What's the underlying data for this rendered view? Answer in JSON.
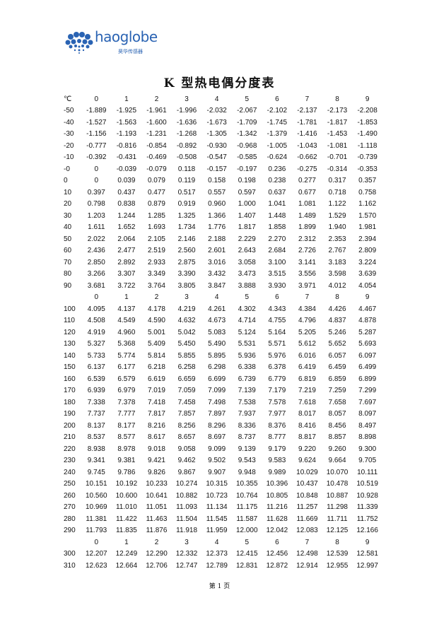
{
  "logo": {
    "brand": "haoglobe",
    "subtitle": "昊华传感器",
    "color": "#2a63b3"
  },
  "title": "K 型热电偶分度表",
  "footer": "第 1 页",
  "sections": [
    {
      "header": {
        "label": "℃",
        "cols": [
          "0",
          "1",
          "2",
          "3",
          "4",
          "5",
          "6",
          "7",
          "8",
          "9"
        ]
      },
      "rows": [
        {
          "t": "-50",
          "v": [
            "-1.889",
            "-1.925",
            "-1.961",
            "-1.996",
            "-2.032",
            "-2.067",
            "-2.102",
            "-2.137",
            "-2.173",
            "-2.208"
          ]
        },
        {
          "t": "-40",
          "v": [
            "-1.527",
            "-1.563",
            "-1.600",
            "-1.636",
            "-1.673",
            "-1.709",
            "-1.745",
            "-1.781",
            "-1.817",
            "-1.853"
          ]
        },
        {
          "t": "-30",
          "v": [
            "-1.156",
            "-1.193",
            "-1.231",
            "-1.268",
            "-1.305",
            "-1.342",
            "-1.379",
            "-1.416",
            "-1.453",
            "-1.490"
          ]
        },
        {
          "t": "-20",
          "v": [
            "-0.777",
            "-0.816",
            "-0.854",
            "-0.892",
            "-0.930",
            "-0.968",
            "-1.005",
            "-1.043",
            "-1.081",
            "-1.118"
          ]
        },
        {
          "t": "-10",
          "v": [
            "-0.392",
            "-0.431",
            "-0.469",
            "-0.508",
            "-0.547",
            "-0.585",
            "-0.624",
            "-0.662",
            "-0.701",
            "-0.739"
          ]
        },
        {
          "t": "-0",
          "v": [
            "0",
            "-0.039",
            "-0.079",
            "0.118",
            "-0.157",
            "-0.197",
            "0.236",
            "-0.275",
            "-0.314",
            "-0.353"
          ]
        },
        {
          "t": "0",
          "v": [
            "0",
            "0.039",
            "0.079",
            "0.119",
            "0.158",
            "0.198",
            "0.238",
            "0.277",
            "0.317",
            "0.357"
          ]
        },
        {
          "t": "10",
          "v": [
            "0.397",
            "0.437",
            "0.477",
            "0.517",
            "0.557",
            "0.597",
            "0.637",
            "0.677",
            "0.718",
            "0.758"
          ]
        },
        {
          "t": "20",
          "v": [
            "0.798",
            "0.838",
            "0.879",
            "0.919",
            "0.960",
            "1.000",
            "1.041",
            "1.081",
            "1.122",
            "1.162"
          ]
        },
        {
          "t": "30",
          "v": [
            "1.203",
            "1.244",
            "1.285",
            "1.325",
            "1.366",
            "1.407",
            "1.448",
            "1.489",
            "1.529",
            "1.570"
          ]
        },
        {
          "t": "40",
          "v": [
            "1.611",
            "1.652",
            "1.693",
            "1.734",
            "1.776",
            "1.817",
            "1.858",
            "1.899",
            "1.940",
            "1.981"
          ]
        },
        {
          "t": "50",
          "v": [
            "2.022",
            "2.064",
            "2.105",
            "2.146",
            "2.188",
            "2.229",
            "2.270",
            "2.312",
            "2.353",
            "2.394"
          ]
        },
        {
          "t": "60",
          "v": [
            "2.436",
            "2.477",
            "2.519",
            "2.560",
            "2.601",
            "2.643",
            "2.684",
            "2.726",
            "2.767",
            "2.809"
          ]
        },
        {
          "t": "70",
          "v": [
            "2.850",
            "2.892",
            "2.933",
            "2.875",
            "3.016",
            "3.058",
            "3.100",
            "3.141",
            "3.183",
            "3.224"
          ]
        },
        {
          "t": "80",
          "v": [
            "3.266",
            "3.307",
            "3.349",
            "3.390",
            "3.432",
            "3.473",
            "3.515",
            "3.556",
            "3.598",
            "3.639"
          ]
        },
        {
          "t": "90",
          "v": [
            "3.681",
            "3.722",
            "3.764",
            "3.805",
            "3.847",
            "3.888",
            "3.930",
            "3.971",
            "4.012",
            "4.054"
          ]
        }
      ]
    },
    {
      "header": {
        "label": "",
        "cols": [
          "0",
          "1",
          "2",
          "3",
          "4",
          "5",
          "6",
          "7",
          "8",
          "9"
        ]
      },
      "rows": [
        {
          "t": "100",
          "v": [
            "4.095",
            "4.137",
            "4.178",
            "4.219",
            "4.261",
            "4.302",
            "4.343",
            "4.384",
            "4.426",
            "4.467"
          ]
        },
        {
          "t": "110",
          "v": [
            "4.508",
            "4.549",
            "4.590",
            "4.632",
            "4.673",
            "4.714",
            "4.755",
            "4.796",
            "4.837",
            "4.878"
          ]
        },
        {
          "t": "120",
          "v": [
            "4.919",
            "4.960",
            "5.001",
            "5.042",
            "5.083",
            "5.124",
            "5.164",
            "5.205",
            "5.246",
            "5.287"
          ]
        },
        {
          "t": "130",
          "v": [
            "5.327",
            "5.368",
            "5.409",
            "5.450",
            "5.490",
            "5.531",
            "5.571",
            "5.612",
            "5.652",
            "5.693"
          ]
        },
        {
          "t": "140",
          "v": [
            "5.733",
            "5.774",
            "5.814",
            "5.855",
            "5.895",
            "5.936",
            "5.976",
            "6.016",
            "6.057",
            "6.097"
          ]
        },
        {
          "t": "150",
          "v": [
            "6.137",
            "6.177",
            "6.218",
            "6.258",
            "6.298",
            "6.338",
            "6.378",
            "6.419",
            "6.459",
            "6.499"
          ]
        },
        {
          "t": "160",
          "v": [
            "6.539",
            "6.579",
            "6.619",
            "6.659",
            "6.699",
            "6.739",
            "6.779",
            "6.819",
            "6.859",
            "6.899"
          ]
        },
        {
          "t": "170",
          "v": [
            "6.939",
            "6.979",
            "7.019",
            "7.059",
            "7.099",
            "7.139",
            "7.179",
            "7.219",
            "7.259",
            "7.299"
          ]
        },
        {
          "t": "180",
          "v": [
            "7.338",
            "7.378",
            "7.418",
            "7.458",
            "7.498",
            "7.538",
            "7.578",
            "7.618",
            "7.658",
            "7.697"
          ]
        },
        {
          "t": "190",
          "v": [
            "7.737",
            "7.777",
            "7.817",
            "7.857",
            "7.897",
            "7.937",
            "7.977",
            "8.017",
            "8.057",
            "8.097"
          ]
        },
        {
          "t": "200",
          "v": [
            "8.137",
            "8.177",
            "8.216",
            "8.256",
            "8.296",
            "8.336",
            "8.376",
            "8.416",
            "8.456",
            "8.497"
          ]
        },
        {
          "t": "210",
          "v": [
            "8.537",
            "8.577",
            "8.617",
            "8.657",
            "8.697",
            "8.737",
            "8.777",
            "8.817",
            "8.857",
            "8.898"
          ]
        },
        {
          "t": "220",
          "v": [
            "8.938",
            "8.978",
            "9.018",
            "9.058",
            "9.099",
            "9.139",
            "9.179",
            "9.220",
            "9.260",
            "9.300"
          ]
        },
        {
          "t": "230",
          "v": [
            "9.341",
            "9.381",
            "9.421",
            "9.462",
            "9.502",
            "9.543",
            "9.583",
            "9.624",
            "9.664",
            "9.705"
          ]
        },
        {
          "t": "240",
          "v": [
            "9.745",
            "9.786",
            "9.826",
            "9.867",
            "9.907",
            "9.948",
            "9.989",
            "10.029",
            "10.070",
            "10.111"
          ]
        },
        {
          "t": "250",
          "v": [
            "10.151",
            "10.192",
            "10.233",
            "10.274",
            "10.315",
            "10.355",
            "10.396",
            "10.437",
            "10.478",
            "10.519"
          ]
        },
        {
          "t": "260",
          "v": [
            "10.560",
            "10.600",
            "10.641",
            "10.882",
            "10.723",
            "10.764",
            "10.805",
            "10.848",
            "10.887",
            "10.928"
          ]
        },
        {
          "t": "270",
          "v": [
            "10.969",
            "11.010",
            "11.051",
            "11.093",
            "11.134",
            "11.175",
            "11.216",
            "11.257",
            "11.298",
            "11.339"
          ]
        },
        {
          "t": "280",
          "v": [
            "11.381",
            "11.422",
            "11.463",
            "11.504",
            "11.545",
            "11.587",
            "11.628",
            "11.669",
            "11.711",
            "11.752"
          ]
        },
        {
          "t": "290",
          "v": [
            "11.793",
            "11.835",
            "11.876",
            "11.918",
            "11.959",
            "12.000",
            "12.042",
            "12.083",
            "12.125",
            "12.166"
          ]
        }
      ]
    },
    {
      "header": {
        "label": "",
        "cols": [
          "0",
          "1",
          "2",
          "3",
          "4",
          "5",
          "6",
          "7",
          "8",
          "9"
        ]
      },
      "rows": [
        {
          "t": "300",
          "v": [
            "12.207",
            "12.249",
            "12.290",
            "12.332",
            "12.373",
            "12.415",
            "12.456",
            "12.498",
            "12.539",
            "12.581"
          ]
        },
        {
          "t": "310",
          "v": [
            "12.623",
            "12.664",
            "12.706",
            "12.747",
            "12.789",
            "12.831",
            "12.872",
            "12.914",
            "12.955",
            "12.997"
          ]
        }
      ]
    }
  ]
}
